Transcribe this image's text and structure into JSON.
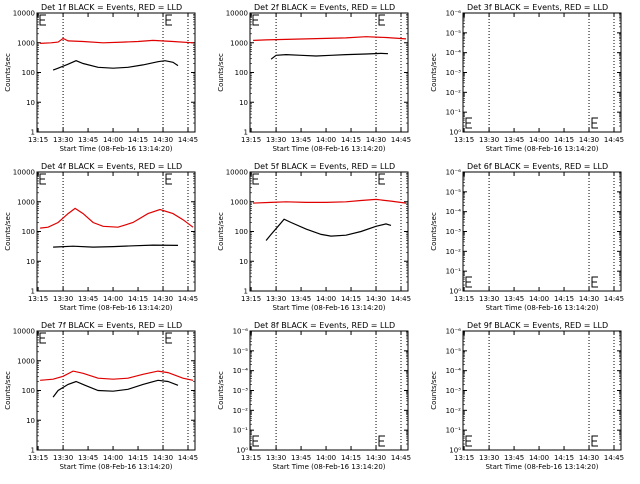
{
  "chart_data": [
    {
      "type": "line",
      "title": "Det 1f BLACK = Events, RED = LLD",
      "xlabel": "Start Time (08-Feb-16 13:14:20)",
      "ylabel": "Counts/sec",
      "scale": "log",
      "ylim": [
        1,
        10000
      ],
      "yticks": [
        "1",
        "10",
        "100",
        "1000",
        "10000"
      ],
      "xticks": [
        "13:15",
        "13:30",
        "13:45",
        "14:00",
        "14:15",
        "14:30",
        "14:45"
      ],
      "series": [
        {
          "color": "red",
          "points": [
            [
              13.27,
              950
            ],
            [
              13.38,
              1000
            ],
            [
              13.45,
              1050
            ],
            [
              13.5,
              1400
            ],
            [
              13.55,
              1150
            ],
            [
              13.7,
              1100
            ],
            [
              13.9,
              1000
            ],
            [
              14.1,
              1050
            ],
            [
              14.25,
              1100
            ],
            [
              14.4,
              1200
            ],
            [
              14.6,
              1100
            ],
            [
              14.8,
              1000
            ]
          ]
        },
        {
          "color": "black",
          "points": [
            [
              13.4,
              120
            ],
            [
              13.45,
              140
            ],
            [
              13.55,
              190
            ],
            [
              13.63,
              250
            ],
            [
              13.7,
              200
            ],
            [
              13.85,
              150
            ],
            [
              14.0,
              140
            ],
            [
              14.15,
              150
            ],
            [
              14.3,
              180
            ],
            [
              14.45,
              230
            ],
            [
              14.52,
              250
            ],
            [
              14.6,
              220
            ],
            [
              14.65,
              170
            ]
          ]
        }
      ]
    },
    {
      "type": "line",
      "title": "Det 2f BLACK = Events, RED = LLD",
      "xlabel": "Start Time (08-Feb-16 13:14:20)",
      "ylabel": "Counts/sec",
      "scale": "log",
      "ylim": [
        1,
        10000
      ],
      "yticks": [
        "1",
        "10",
        "100",
        "1000",
        "10000"
      ],
      "xticks": [
        "13:15",
        "13:30",
        "13:45",
        "14:00",
        "14:15",
        "14:30",
        "14:45"
      ],
      "series": [
        {
          "color": "red",
          "points": [
            [
              13.27,
              1200
            ],
            [
              13.4,
              1250
            ],
            [
              13.6,
              1300
            ],
            [
              13.8,
              1350
            ],
            [
              14.0,
              1400
            ],
            [
              14.2,
              1450
            ],
            [
              14.4,
              1600
            ],
            [
              14.6,
              1500
            ],
            [
              14.8,
              1350
            ]
          ]
        },
        {
          "color": "black",
          "points": [
            [
              13.45,
              280
            ],
            [
              13.5,
              380
            ],
            [
              13.6,
              400
            ],
            [
              13.75,
              380
            ],
            [
              13.9,
              360
            ],
            [
              14.05,
              380
            ],
            [
              14.2,
              400
            ],
            [
              14.4,
              420
            ],
            [
              14.55,
              440
            ],
            [
              14.62,
              430
            ]
          ]
        }
      ]
    },
    {
      "type": "line",
      "title": "Det 3f BLACK = Events, RED = LLD",
      "xlabel": "Start Time (08-Feb-16 13:14:20)",
      "ylabel": "Counts/sec",
      "scale": "log",
      "ylim": [
        1,
        1e-06
      ],
      "yticks": [
        "10⁰",
        "10⁻¹",
        "10⁻²",
        "10⁻³",
        "10⁻⁴",
        "10⁻⁵",
        "10⁻⁶"
      ],
      "xticks": [
        "13:15",
        "13:30",
        "13:45",
        "14:00",
        "14:15",
        "14:30",
        "14:45"
      ],
      "series": []
    },
    {
      "type": "line",
      "title": "Det 4f BLACK = Events, RED = LLD",
      "xlabel": "Start Time (08-Feb-16 13:14:20)",
      "ylabel": "Counts/sec",
      "scale": "log",
      "ylim": [
        1,
        10000
      ],
      "yticks": [
        "1",
        "10",
        "100",
        "1000",
        "10000"
      ],
      "xticks": [
        "13:15",
        "13:30",
        "13:45",
        "14:00",
        "14:15",
        "14:30",
        "14:45"
      ],
      "series": [
        {
          "color": "red",
          "points": [
            [
              13.27,
              130
            ],
            [
              13.35,
              140
            ],
            [
              13.45,
              200
            ],
            [
              13.55,
              400
            ],
            [
              13.62,
              600
            ],
            [
              13.7,
              400
            ],
            [
              13.8,
              200
            ],
            [
              13.9,
              150
            ],
            [
              14.05,
              140
            ],
            [
              14.2,
              200
            ],
            [
              14.35,
              400
            ],
            [
              14.47,
              550
            ],
            [
              14.6,
              400
            ],
            [
              14.7,
              250
            ],
            [
              14.8,
              140
            ]
          ]
        },
        {
          "color": "black",
          "points": [
            [
              13.4,
              30
            ],
            [
              13.6,
              32
            ],
            [
              13.8,
              30
            ],
            [
              14.0,
              31
            ],
            [
              14.2,
              33
            ],
            [
              14.4,
              35
            ],
            [
              14.65,
              34
            ]
          ]
        }
      ]
    },
    {
      "type": "line",
      "title": "Det 5f BLACK = Events, RED = LLD",
      "xlabel": "Start Time (08-Feb-16 13:14:20)",
      "ylabel": "Counts/sec",
      "scale": "log",
      "ylim": [
        1,
        10000
      ],
      "yticks": [
        "1",
        "10",
        "100",
        "1000",
        "10000"
      ],
      "xticks": [
        "13:15",
        "13:30",
        "13:45",
        "14:00",
        "14:15",
        "14:30",
        "14:45"
      ],
      "series": [
        {
          "color": "red",
          "points": [
            [
              13.27,
              900
            ],
            [
              13.45,
              950
            ],
            [
              13.6,
              1000
            ],
            [
              13.8,
              950
            ],
            [
              14.0,
              950
            ],
            [
              14.2,
              1000
            ],
            [
              14.35,
              1100
            ],
            [
              14.5,
              1200
            ],
            [
              14.65,
              1050
            ],
            [
              14.8,
              900
            ]
          ]
        },
        {
          "color": "black",
          "points": [
            [
              13.4,
              50
            ],
            [
              13.45,
              80
            ],
            [
              13.52,
              150
            ],
            [
              13.58,
              260
            ],
            [
              13.65,
              200
            ],
            [
              13.8,
              120
            ],
            [
              13.95,
              80
            ],
            [
              14.05,
              70
            ],
            [
              14.2,
              75
            ],
            [
              14.35,
              100
            ],
            [
              14.5,
              150
            ],
            [
              14.6,
              180
            ],
            [
              14.65,
              160
            ]
          ]
        }
      ]
    },
    {
      "type": "line",
      "title": "Det 6f BLACK = Events, RED = LLD",
      "xlabel": "Start Time (08-Feb-16 13:14:20)",
      "ylabel": "Counts/sec",
      "scale": "log",
      "ylim": [
        1,
        1e-06
      ],
      "yticks": [
        "10⁰",
        "10⁻¹",
        "10⁻²",
        "10⁻³",
        "10⁻⁴",
        "10⁻⁵",
        "10⁻⁶"
      ],
      "xticks": [
        "13:15",
        "13:30",
        "13:45",
        "14:00",
        "14:15",
        "14:30",
        "14:45"
      ],
      "series": []
    },
    {
      "type": "line",
      "title": "Det 7f BLACK = Events, RED = LLD",
      "xlabel": "Start Time (08-Feb-16 13:14:20)",
      "ylabel": "Counts/sec",
      "scale": "log",
      "ylim": [
        1,
        10000
      ],
      "yticks": [
        "1",
        "10",
        "100",
        "1000",
        "10000"
      ],
      "xticks": [
        "13:15",
        "13:30",
        "13:45",
        "14:00",
        "14:15",
        "14:30",
        "14:45"
      ],
      "series": [
        {
          "color": "red",
          "points": [
            [
              13.27,
              220
            ],
            [
              13.4,
              240
            ],
            [
              13.5,
              300
            ],
            [
              13.6,
              450
            ],
            [
              13.7,
              380
            ],
            [
              13.85,
              260
            ],
            [
              14.0,
              240
            ],
            [
              14.15,
              260
            ],
            [
              14.3,
              350
            ],
            [
              14.45,
              450
            ],
            [
              14.55,
              400
            ],
            [
              14.7,
              260
            ],
            [
              14.8,
              220
            ]
          ]
        },
        {
          "color": "black",
          "points": [
            [
              13.4,
              60
            ],
            [
              13.45,
              100
            ],
            [
              13.55,
              160
            ],
            [
              13.63,
              200
            ],
            [
              13.72,
              150
            ],
            [
              13.85,
              100
            ],
            [
              14.0,
              95
            ],
            [
              14.15,
              110
            ],
            [
              14.3,
              160
            ],
            [
              14.45,
              220
            ],
            [
              14.55,
              200
            ],
            [
              14.65,
              150
            ]
          ]
        }
      ]
    },
    {
      "type": "line",
      "title": "Det 8f BLACK = Events, RED = LLD",
      "xlabel": "Start Time (08-Feb-16 13:14:20)",
      "ylabel": "Counts/sec",
      "scale": "log",
      "ylim": [
        1,
        1e-06
      ],
      "yticks": [
        "10⁰",
        "10⁻¹",
        "10⁻²",
        "10⁻³",
        "10⁻⁴",
        "10⁻⁵",
        "10⁻⁶"
      ],
      "xticks": [
        "13:15",
        "13:30",
        "13:45",
        "14:00",
        "14:15",
        "14:30",
        "14:45"
      ],
      "series": []
    },
    {
      "type": "line",
      "title": "Det 9f BLACK = Events, RED = LLD",
      "xlabel": "Start Time (08-Feb-16 13:14:20)",
      "ylabel": "Counts/sec",
      "scale": "log",
      "ylim": [
        1,
        1e-06
      ],
      "yticks": [
        "10⁰",
        "10⁻¹",
        "10⁻²",
        "10⁻³",
        "10⁻⁴",
        "10⁻⁵",
        "10⁻⁶"
      ],
      "xticks": [
        "13:15",
        "13:30",
        "13:45",
        "14:00",
        "14:15",
        "14:30",
        "14:45"
      ],
      "series": []
    }
  ]
}
